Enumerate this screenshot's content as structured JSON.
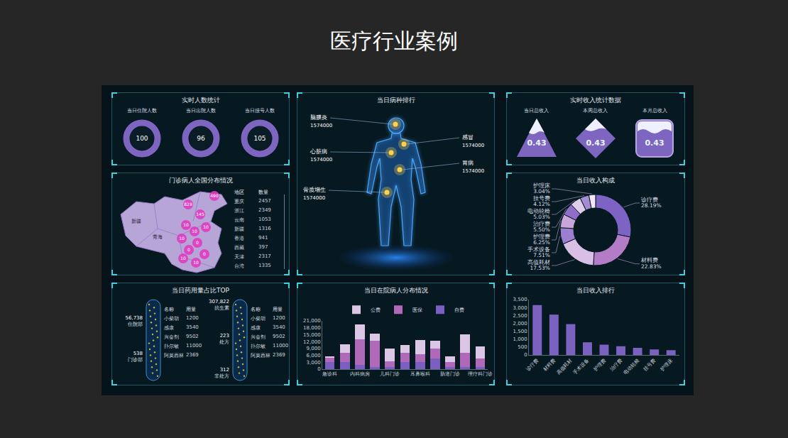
{
  "header": {
    "title": "医疗行业案例"
  },
  "panels": {
    "people": {
      "title": "实时人数统计",
      "items": [
        {
          "label": "当日住院人数",
          "value": 100
        },
        {
          "label": "当日出院人数",
          "value": 96
        },
        {
          "label": "当日挂号人数",
          "value": 105
        }
      ]
    },
    "disease": {
      "title": "当日病种排行",
      "items": [
        {
          "label": "脑膜炎",
          "value": 1574000
        },
        {
          "label": "心脏病",
          "value": 1574000
        },
        {
          "label": "骨质增生",
          "value": 1574000
        },
        {
          "label": "感冒",
          "value": 1574000
        },
        {
          "label": "胃病",
          "value": 1574000
        }
      ]
    },
    "income": {
      "title": "实时收入统计数据",
      "items": [
        {
          "label": "当日总收入",
          "value": 0.43
        },
        {
          "label": "本周总收入",
          "value": 0.43
        },
        {
          "label": "本月总收入",
          "value": 0.43
        }
      ]
    },
    "map": {
      "title": "门诊病人全国分布情况",
      "region_labels": [
        "新疆",
        "青海"
      ],
      "bubbles": [
        490,
        829,
        145,
        10,
        10,
        10,
        10,
        0,
        0,
        0,
        10,
        10
      ],
      "table": {
        "header": [
          "地区",
          "数量"
        ],
        "rows": [
          [
            "重庆",
            2457
          ],
          [
            "浙江",
            2349
          ],
          [
            "云南",
            1053
          ],
          [
            "新疆",
            1316
          ],
          [
            "香港",
            941
          ],
          [
            "西藏",
            397
          ],
          [
            "天津",
            2317
          ],
          [
            "台湾",
            1335
          ]
        ]
      }
    },
    "drugs": {
      "title": "当日药用量占比TOP",
      "groups": [
        {
          "callouts": [
            {
              "text": "56,738",
              "label": "住院部"
            },
            {
              "text": "538",
              "label": "门诊部"
            }
          ],
          "table": {
            "header": [
              "名称",
              "用量"
            ],
            "rows": [
              [
                "小柴胡",
                1200
              ],
              [
                "感康",
                3540
              ],
              [
                "兴奋剂",
                9502
              ],
              [
                "扑尔敏",
                11000
              ],
              [
                "阿莫西林",
                2369
              ]
            ]
          }
        },
        {
          "callouts": [
            {
              "text": "307,822",
              "label": "抗生素"
            },
            {
              "text": "223",
              "label": "处方"
            },
            {
              "text": "312",
              "label": "非处方"
            }
          ],
          "table": {
            "header": [
              "名称",
              "用量"
            ],
            "rows": [
              [
                "小柴胡",
                1200
              ],
              [
                "感康",
                3540
              ],
              [
                "兴奋剂",
                9502
              ],
              [
                "扑尔敏",
                11000
              ],
              [
                "阿莫西林",
                2369
              ]
            ]
          }
        }
      ]
    }
  },
  "chart_data": [
    {
      "type": "pie",
      "title": "当日收入构成",
      "categories": [
        "诊疗费",
        "材料费",
        "高值耗材",
        "手术设备",
        "护理费",
        "治疗费",
        "电动轮椅",
        "挂号费",
        "护理床"
      ],
      "values": [
        28.19,
        22.83,
        17.53,
        7.51,
        6.25,
        5.5,
        5.03,
        4.12,
        3.04
      ],
      "value_labels": [
        "28.19%",
        "22.83%",
        "17.53%",
        "7.51%",
        "6.25%",
        "5.50%",
        "5.03%",
        "4.12%",
        "3.04%"
      ],
      "colors": [
        "#7c63c4",
        "#b47cc7",
        "#d9bfe6",
        "#9c7fd0",
        "#c9a6d9",
        "#8e6ec8",
        "#e0cdea",
        "#a58ad4",
        "#f0e6f5"
      ],
      "data_labels": true
    },
    {
      "type": "bar",
      "title": "当日在院病人分布情况",
      "stacked": true,
      "legend": "top",
      "grid": false,
      "categories": [
        "急诊科",
        null,
        "内科病房",
        null,
        "儿科门诊",
        null,
        "耳鼻喉科",
        null,
        "肠道门诊",
        null,
        "理疗科门诊"
      ],
      "series": [
        {
          "name": "自费",
          "color": "#7a5fc0",
          "values": [
            3000,
            3000,
            2000,
            1000,
            1000,
            3000,
            3000,
            4500,
            1000,
            1000,
            1000
          ]
        },
        {
          "name": "医保",
          "color": "#b068b8",
          "values": [
            1800,
            4000,
            11000,
            11500,
            2500,
            4000,
            3500,
            4500,
            2000,
            6000,
            3500
          ]
        },
        {
          "name": "公费",
          "color": "#dcc6e6",
          "values": [
            700,
            3800,
            6500,
            3000,
            5500,
            3400,
            6300,
            3400,
            2500,
            8000,
            5500
          ]
        }
      ],
      "ylim": [
        0,
        21000
      ],
      "yticks": [
        0,
        {
          "value": 3000,
          "label": "3,000"
        },
        {
          "value": 6000,
          "label": "6,000"
        },
        {
          "value": 9000,
          "label": "9,000"
        },
        {
          "value": 12000,
          "label": "12,000"
        },
        {
          "value": 15000,
          "label": "15,000"
        },
        {
          "value": 18000,
          "label": "18,000"
        },
        {
          "value": 21000,
          "label": "21,000"
        }
      ]
    },
    {
      "type": "bar",
      "title": "当日收入排行",
      "grid": false,
      "color": "#7b62c0",
      "categories": [
        "诊疗费",
        "材料费",
        "高值耗材",
        "手术设备",
        "护理费",
        "治疗费",
        "电动轮椅",
        "挂号费",
        "护理床"
      ],
      "values": [
        3150,
        2550,
        1950,
        800,
        650,
        550,
        450,
        350,
        300
      ],
      "ylim": [
        0,
        3500
      ],
      "yticks": [
        0,
        500,
        {
          "value": 1000,
          "label": "1,000"
        },
        {
          "value": 1500,
          "label": "1,500"
        },
        {
          "value": 2000,
          "label": "2,000"
        },
        {
          "value": 2500,
          "label": "2,500"
        },
        {
          "value": 3000,
          "label": "3,000"
        },
        {
          "value": 3500,
          "label": "3,500"
        }
      ]
    }
  ]
}
